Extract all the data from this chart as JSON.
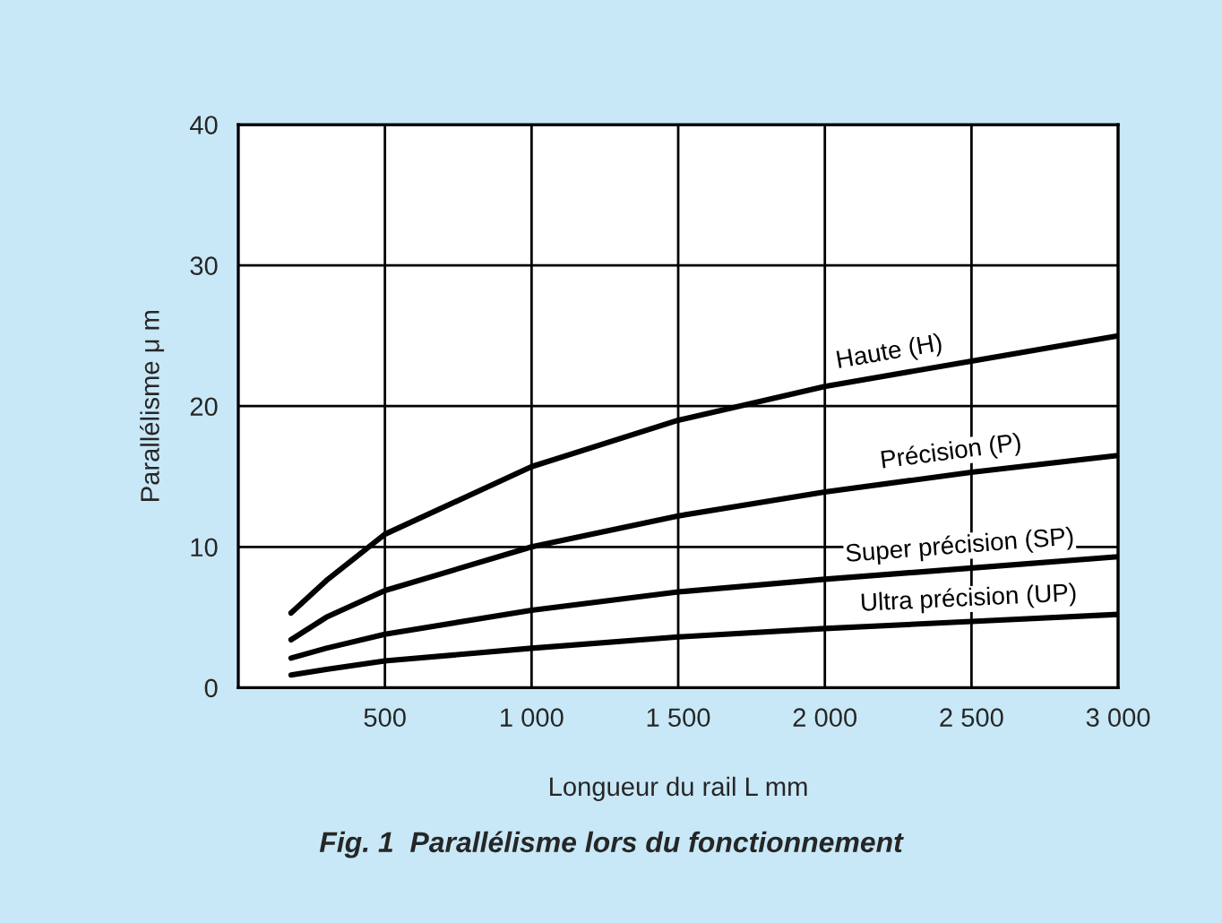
{
  "chart_data": {
    "type": "line",
    "title": "Fig. 1  Parallélisme lors du fonctionnement",
    "xlabel": "Longueur du rail L mm",
    "ylabel": "Parallélisme μ m",
    "x": [
      180,
      300,
      500,
      1000,
      1500,
      2000,
      2500,
      3000
    ],
    "series": [
      {
        "name": "Haute (H)",
        "color": "#000000",
        "values": [
          5.3,
          7.6,
          10.9,
          15.7,
          19.0,
          21.4,
          23.2,
          25.0
        ]
      },
      {
        "name": "Précision (P)",
        "color": "#000000",
        "values": [
          3.4,
          5.0,
          6.9,
          10.0,
          12.2,
          13.9,
          15.3,
          16.5
        ]
      },
      {
        "name": "Super précision (SP)",
        "color": "#000000",
        "values": [
          2.1,
          2.8,
          3.8,
          5.5,
          6.8,
          7.7,
          8.5,
          9.3
        ]
      },
      {
        "name": "Ultra précision (UP)",
        "color": "#000000",
        "values": [
          0.9,
          1.3,
          1.9,
          2.8,
          3.6,
          4.2,
          4.7,
          5.2
        ]
      }
    ],
    "xlim": [
      0,
      3000
    ],
    "ylim": [
      0,
      40
    ],
    "xticks": [
      500,
      {
        "value": 1000,
        "label": "1 000"
      },
      {
        "value": 1500,
        "label": "1 500"
      },
      {
        "value": 2000,
        "label": "2 000"
      },
      {
        "value": 2500,
        "label": "2 500"
      },
      {
        "value": 3000,
        "label": "3 000"
      }
    ],
    "yticks": [
      0,
      10,
      20,
      30,
      40
    ],
    "grid": true,
    "legend": false,
    "marker": "none",
    "line_style": "solid"
  }
}
